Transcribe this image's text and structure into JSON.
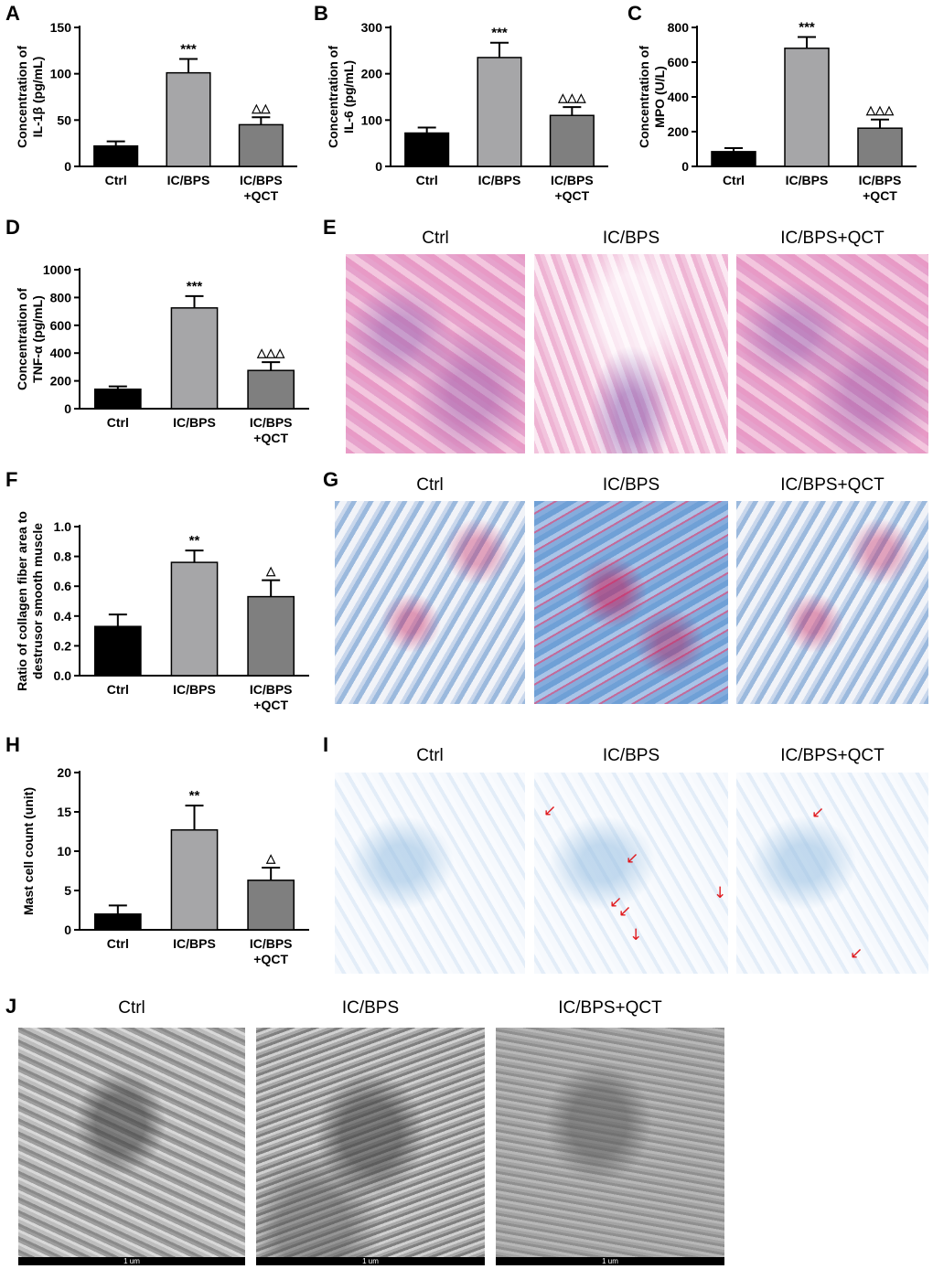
{
  "panel_letters": {
    "A": "A",
    "B": "B",
    "C": "C",
    "D": "D",
    "E": "E",
    "F": "F",
    "G": "G",
    "H": "H",
    "I": "I",
    "J": "J"
  },
  "image_panels": {
    "E": {
      "titles": [
        "Ctrl",
        "IC/BPS",
        "IC/BPS+QCT"
      ]
    },
    "G": {
      "titles": [
        "Ctrl",
        "IC/BPS",
        "IC/BPS+QCT"
      ]
    },
    "I": {
      "titles": [
        "Ctrl",
        "IC/BPS",
        "IC/BPS+QCT"
      ]
    },
    "J": {
      "titles": [
        "Ctrl",
        "IC/BPS",
        "IC/BPS+QCT"
      ],
      "scale_label": "1 um"
    }
  },
  "colors": {
    "ctrl_bar": "#000000",
    "icbps_bar": "#a6a6a8",
    "qct_bar": "#7f7f7f",
    "arrow": "#e0181c"
  },
  "chart_data": [
    {
      "id": "A",
      "type": "bar",
      "categories": [
        "Ctrl",
        "IC/BPS",
        "IC/BPS\n+QCT"
      ],
      "values": [
        22,
        101,
        45
      ],
      "errors": [
        5,
        15,
        8
      ],
      "significance": [
        "",
        "***",
        "△△"
      ],
      "ylabel_lines": [
        "Concentration of",
        "IL-1β (pg/mL)"
      ],
      "ylim": [
        0,
        150
      ],
      "yticks": [
        0,
        50,
        100,
        150
      ]
    },
    {
      "id": "B",
      "type": "bar",
      "categories": [
        "Ctrl",
        "IC/BPS",
        "IC/BPS\n+QCT"
      ],
      "values": [
        72,
        235,
        110
      ],
      "errors": [
        12,
        32,
        18
      ],
      "significance": [
        "",
        "***",
        "△△△"
      ],
      "ylabel_lines": [
        "Concentration of",
        "IL-6 (pg/mL)"
      ],
      "ylim": [
        0,
        300
      ],
      "yticks": [
        0,
        100,
        200,
        300
      ]
    },
    {
      "id": "C",
      "type": "bar",
      "categories": [
        "Ctrl",
        "IC/BPS",
        "IC/BPS\n+QCT"
      ],
      "values": [
        85,
        680,
        220
      ],
      "errors": [
        20,
        65,
        50
      ],
      "significance": [
        "",
        "***",
        "△△△"
      ],
      "ylabel_lines": [
        "Concentration of",
        "MPO (U/L)"
      ],
      "ylim": [
        0,
        800
      ],
      "yticks": [
        0,
        200,
        400,
        600,
        800
      ]
    },
    {
      "id": "D",
      "type": "bar",
      "categories": [
        "Ctrl",
        "IC/BPS",
        "IC/BPS\n+QCT"
      ],
      "values": [
        140,
        725,
        275
      ],
      "errors": [
        20,
        85,
        60
      ],
      "significance": [
        "",
        "***",
        "△△△"
      ],
      "ylabel_lines": [
        "Concentration of",
        "TNF-α (pg/mL)"
      ],
      "ylim": [
        0,
        1000
      ],
      "yticks": [
        0,
        200,
        400,
        600,
        800,
        1000
      ]
    },
    {
      "id": "F",
      "type": "bar",
      "categories": [
        "Ctrl",
        "IC/BPS",
        "IC/BPS\n+QCT"
      ],
      "values": [
        0.33,
        0.76,
        0.53
      ],
      "errors": [
        0.08,
        0.08,
        0.11
      ],
      "significance": [
        "",
        "**",
        "△"
      ],
      "ylabel_lines": [
        "Ratio of collagen fiber area to",
        "destrusor smooth muscle"
      ],
      "ylim": [
        0,
        1.0
      ],
      "yticks": [
        "0.0",
        "0.2",
        "0.4",
        "0.6",
        "0.8",
        "1.0"
      ]
    },
    {
      "id": "H",
      "type": "bar",
      "categories": [
        "Ctrl",
        "IC/BPS",
        "IC/BPS\n+QCT"
      ],
      "values": [
        2.0,
        12.7,
        6.3
      ],
      "errors": [
        1.1,
        3.1,
        1.6
      ],
      "significance": [
        "",
        "**",
        "△"
      ],
      "ylabel_lines": [
        "Mast cell count (unit)"
      ],
      "ylim": [
        0,
        20
      ],
      "yticks": [
        0,
        5,
        10,
        15,
        20
      ]
    }
  ]
}
